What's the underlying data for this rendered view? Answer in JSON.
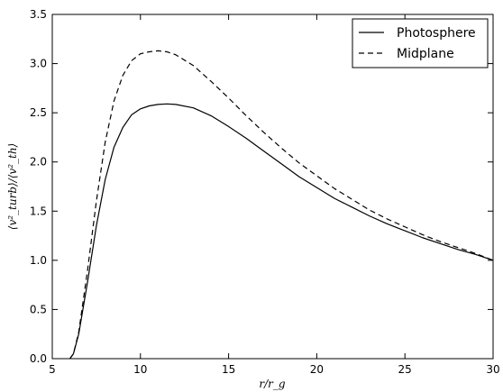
{
  "chart_data": {
    "type": "line",
    "xlabel": "r/r_g",
    "ylabel": "⟨v²_turb⟩/⟨v²_th⟩",
    "xlim": [
      5,
      30
    ],
    "ylim": [
      0.0,
      3.5
    ],
    "xticks": [
      5,
      10,
      15,
      20,
      25,
      30
    ],
    "yticks": [
      0.0,
      0.5,
      1.0,
      1.5,
      2.0,
      2.5,
      3.0,
      3.5
    ],
    "xtick_labels": [
      "5",
      "10",
      "15",
      "20",
      "25",
      "30"
    ],
    "ytick_labels": [
      "0.0",
      "0.5",
      "1.0",
      "1.5",
      "2.0",
      "2.5",
      "3.0",
      "3.5"
    ],
    "grid": false,
    "legend_position": "top-right",
    "series": [
      {
        "name": "Photosphere",
        "style": "solid",
        "color": "#000000",
        "x": [
          6.0,
          6.2,
          6.5,
          7.0,
          7.5,
          8.0,
          8.5,
          9.0,
          9.5,
          10.0,
          10.5,
          11.0,
          11.5,
          12.0,
          13.0,
          14.0,
          15.0,
          16.0,
          17.0,
          18.0,
          19.0,
          20.0,
          21.0,
          22.0,
          23.0,
          24.0,
          25.0,
          26.0,
          27.0,
          28.0,
          29.0,
          30.0
        ],
        "y": [
          0.0,
          0.05,
          0.25,
          0.78,
          1.35,
          1.82,
          2.15,
          2.35,
          2.48,
          2.54,
          2.57,
          2.585,
          2.59,
          2.585,
          2.55,
          2.47,
          2.36,
          2.24,
          2.11,
          1.98,
          1.85,
          1.74,
          1.63,
          1.54,
          1.45,
          1.37,
          1.3,
          1.23,
          1.17,
          1.11,
          1.06,
          1.0
        ]
      },
      {
        "name": "Midplane",
        "style": "dashed",
        "color": "#000000",
        "x": [
          6.0,
          6.2,
          6.5,
          7.0,
          7.5,
          8.0,
          8.5,
          9.0,
          9.5,
          10.0,
          10.5,
          11.0,
          11.5,
          12.0,
          13.0,
          14.0,
          15.0,
          16.0,
          17.0,
          18.0,
          19.0,
          20.0,
          21.0,
          22.0,
          23.0,
          24.0,
          25.0,
          26.0,
          27.0,
          28.0,
          29.0,
          30.0
        ],
        "y": [
          0.0,
          0.05,
          0.27,
          0.9,
          1.6,
          2.2,
          2.62,
          2.88,
          3.03,
          3.1,
          3.12,
          3.13,
          3.12,
          3.09,
          2.98,
          2.82,
          2.65,
          2.47,
          2.3,
          2.14,
          1.99,
          1.86,
          1.73,
          1.62,
          1.51,
          1.42,
          1.34,
          1.26,
          1.19,
          1.13,
          1.07,
          1.0
        ]
      }
    ]
  }
}
